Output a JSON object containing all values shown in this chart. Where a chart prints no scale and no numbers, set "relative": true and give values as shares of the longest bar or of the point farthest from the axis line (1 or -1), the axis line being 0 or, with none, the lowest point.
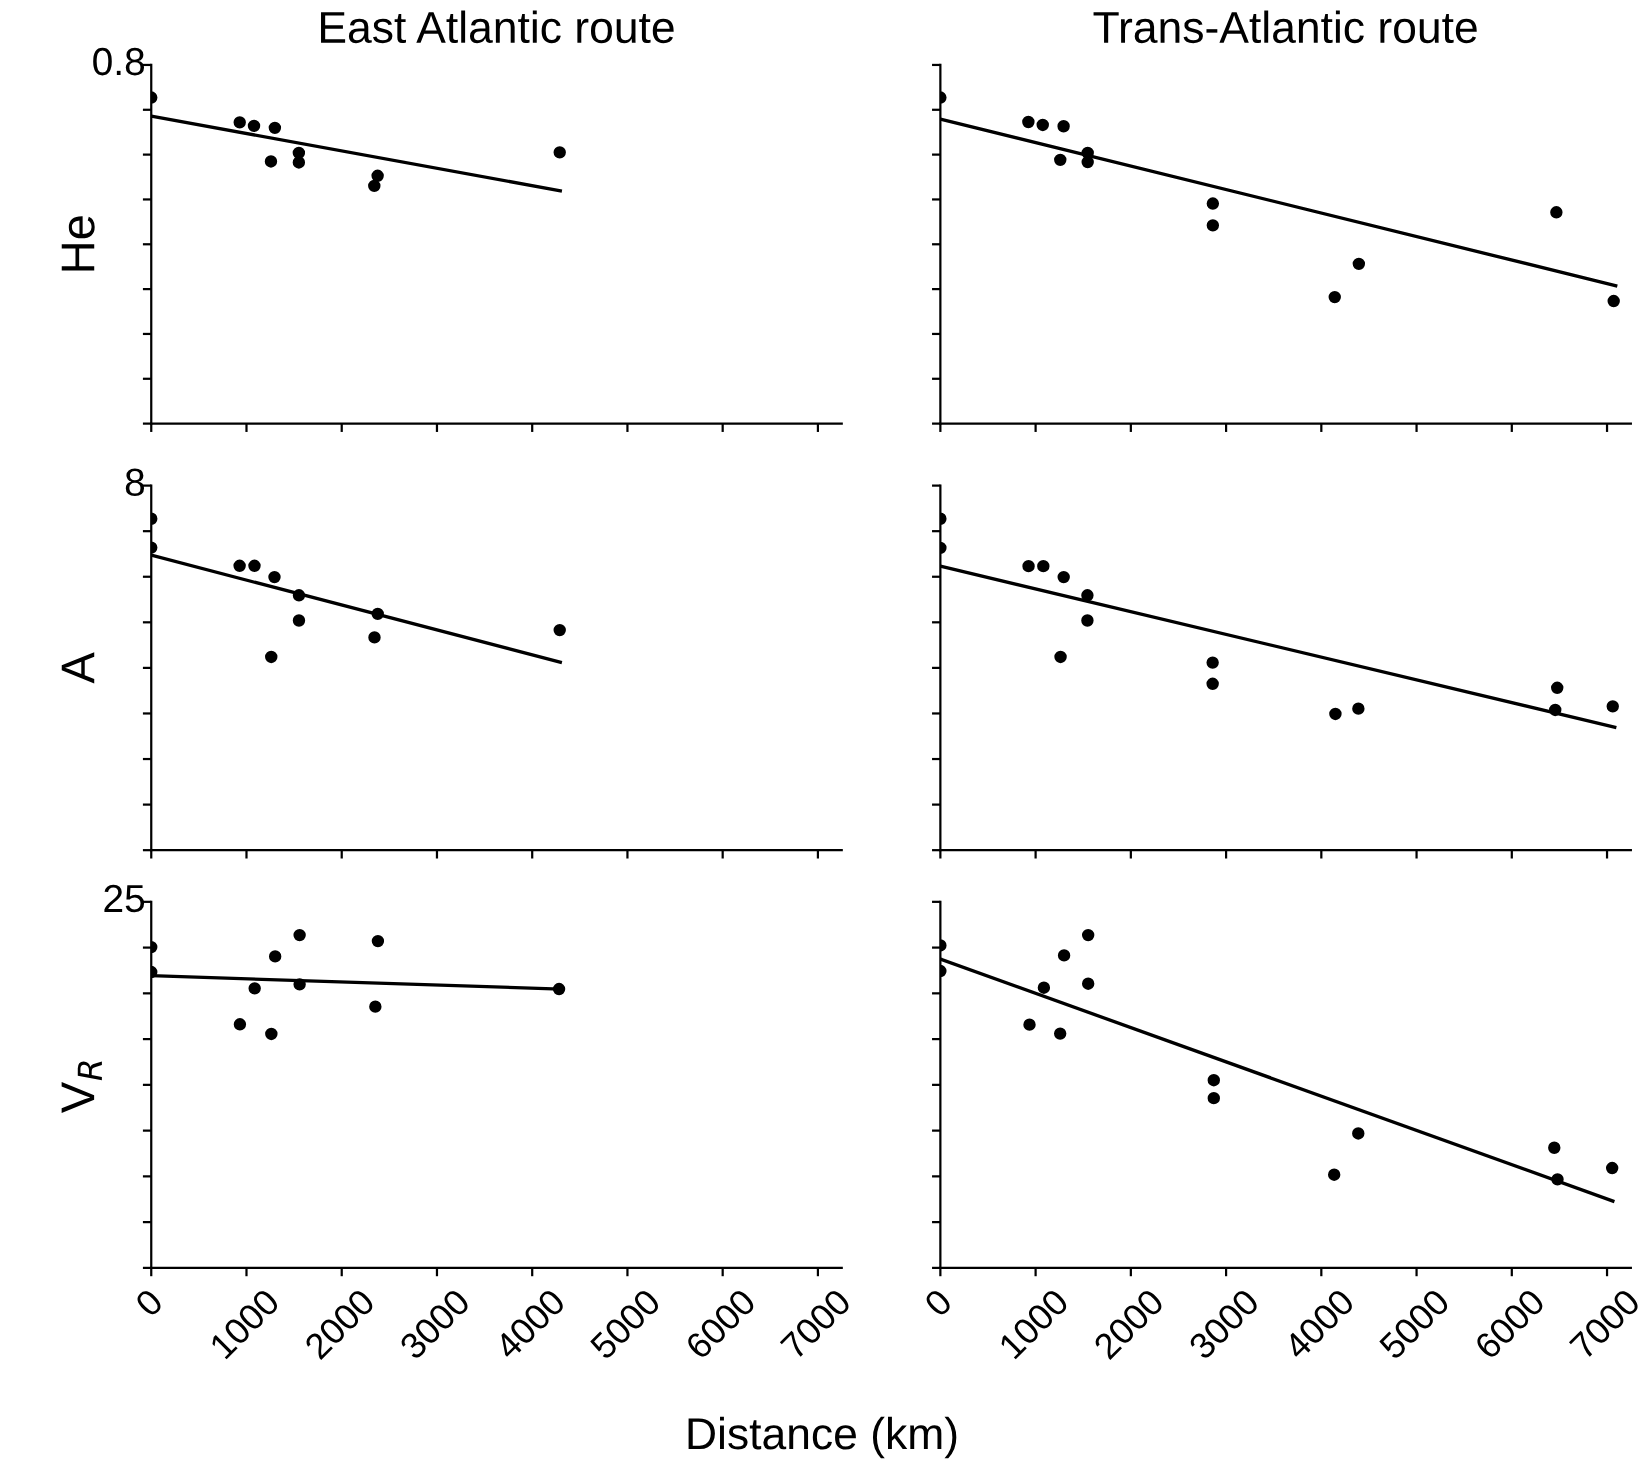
{
  "chart_data": [
    {
      "type": "scatter",
      "title": "East Atlantic route",
      "ylabel": "He",
      "relative": true,
      "marker": "circle",
      "tick_labels": false,
      "xlim": [
        0,
        7250
      ],
      "xticks": [
        0,
        1000,
        2000,
        3000,
        4000,
        5000,
        6000,
        7000
      ],
      "annotations": [
        "0.8"
      ],
      "series": [
        {
          "color": "#000000",
          "x": [
            0,
            929,
            1079,
            1298,
            1257,
            1550,
            1550,
            2342,
            2377,
            4289
          ],
          "values": [
            1.0,
            0.924,
            0.913,
            0.907,
            0.804,
            0.83,
            0.801,
            0.729,
            0.76,
            0.832
          ]
        },
        {
          "type": "line",
          "marker": "none",
          "color": "#000000",
          "x": [
            0,
            4295
          ],
          "values": [
            0.943,
            0.714
          ]
        }
      ]
    },
    {
      "type": "scatter",
      "title": "Trans-Atlantic route",
      "relative": true,
      "marker": "circle",
      "tick_labels": false,
      "xlim": [
        0,
        7250
      ],
      "xticks": [
        0,
        1000,
        2000,
        3000,
        4000,
        5000,
        6000,
        7000
      ],
      "series": [
        {
          "color": "#000000",
          "x": [
            0,
            924,
            1075,
            1294,
            1259,
            1547,
            1547,
            2861,
            2861,
            4141,
            4394,
            6468,
            7070
          ],
          "values": [
            1.0,
            0.925,
            0.916,
            0.912,
            0.809,
            0.83,
            0.802,
            0.675,
            0.608,
            0.388,
            0.49,
            0.648,
            0.376
          ]
        },
        {
          "type": "line",
          "marker": "none",
          "color": "#000000",
          "x": [
            0,
            7091
          ],
          "values": [
            0.934,
            0.423
          ]
        }
      ]
    },
    {
      "type": "scatter",
      "ylabel": "A",
      "relative": true,
      "marker": "circle",
      "tick_labels": false,
      "xlim": [
        0,
        7250
      ],
      "xticks": [
        0,
        1000,
        2000,
        3000,
        4000,
        5000,
        6000,
        7000
      ],
      "annotations": [
        "8"
      ],
      "series": [
        {
          "color": "#000000",
          "x": [
            0,
            0,
            928,
            1084,
            1294,
            1551,
            1551,
            1260,
            2378,
            2344,
            4289
          ],
          "values": [
            1.0,
            0.913,
            0.858,
            0.858,
            0.824,
            0.769,
            0.693,
            0.583,
            0.713,
            0.642,
            0.664
          ]
        },
        {
          "type": "line",
          "marker": "none",
          "color": "#000000",
          "x": [
            0,
            4295
          ],
          "values": [
            0.89,
            0.567
          ]
        }
      ]
    },
    {
      "type": "scatter",
      "relative": true,
      "marker": "circle",
      "tick_labels": false,
      "xlim": [
        0,
        7250
      ],
      "xticks": [
        0,
        1000,
        2000,
        3000,
        4000,
        5000,
        6000,
        7000
      ],
      "series": [
        {
          "color": "#000000",
          "x": [
            0,
            0,
            926,
            1081,
            1295,
            1544,
            1544,
            1262,
            2859,
            2859,
            4148,
            4389,
            6477,
            6456,
            7060
          ],
          "values": [
            1.0,
            0.912,
            0.857,
            0.857,
            0.824,
            0.769,
            0.693,
            0.583,
            0.566,
            0.502,
            0.411,
            0.427,
            0.49,
            0.423,
            0.434
          ]
        },
        {
          "type": "line",
          "marker": "none",
          "color": "#000000",
          "x": [
            0,
            7081
          ],
          "values": [
            0.857,
            0.371
          ]
        }
      ]
    },
    {
      "type": "scatter",
      "ylabel": "V$_{R}$",
      "xlabel": "Distance (km)",
      "relative": true,
      "marker": "circle",
      "tick_labels": "x",
      "xlim": [
        0,
        7250
      ],
      "xticks": [
        0,
        1000,
        2000,
        3000,
        4000,
        5000,
        6000,
        7000
      ],
      "annotations": [
        "25"
      ],
      "series": [
        {
          "color": "#000000",
          "x": [
            0,
            0,
            931,
            1086,
            1261,
            1301,
            1558,
            1558,
            2380,
            2353,
            4282
          ],
          "values": [
            0.964,
            0.889,
            0.732,
            0.84,
            0.703,
            0.936,
            1.0,
            0.852,
            0.982,
            0.785,
            0.838
          ]
        },
        {
          "type": "line",
          "marker": "none",
          "color": "#000000",
          "x": [
            0,
            4282
          ],
          "values": [
            0.878,
            0.838
          ]
        }
      ]
    },
    {
      "type": "scatter",
      "relative": true,
      "marker": "circle",
      "tick_labels": "x",
      "xlim": [
        0,
        7250
      ],
      "xticks": [
        0,
        1000,
        2000,
        3000,
        4000,
        5000,
        6000,
        7000
      ],
      "series": [
        {
          "color": "#000000",
          "x": [
            0,
            0,
            936,
            1087,
            1299,
            1258,
            1552,
            1552,
            2871,
            2871,
            4135,
            4388,
            6446,
            6480,
            7054
          ],
          "values": [
            0.969,
            0.892,
            0.731,
            0.842,
            0.939,
            0.704,
            1.0,
            0.854,
            0.564,
            0.51,
            0.28,
            0.404,
            0.361,
            0.266,
            0.3
          ]
        },
        {
          "type": "line",
          "marker": "none",
          "color": "#000000",
          "x": [
            0,
            7061
          ],
          "values": [
            0.928,
            0.201
          ]
        }
      ]
    }
  ]
}
